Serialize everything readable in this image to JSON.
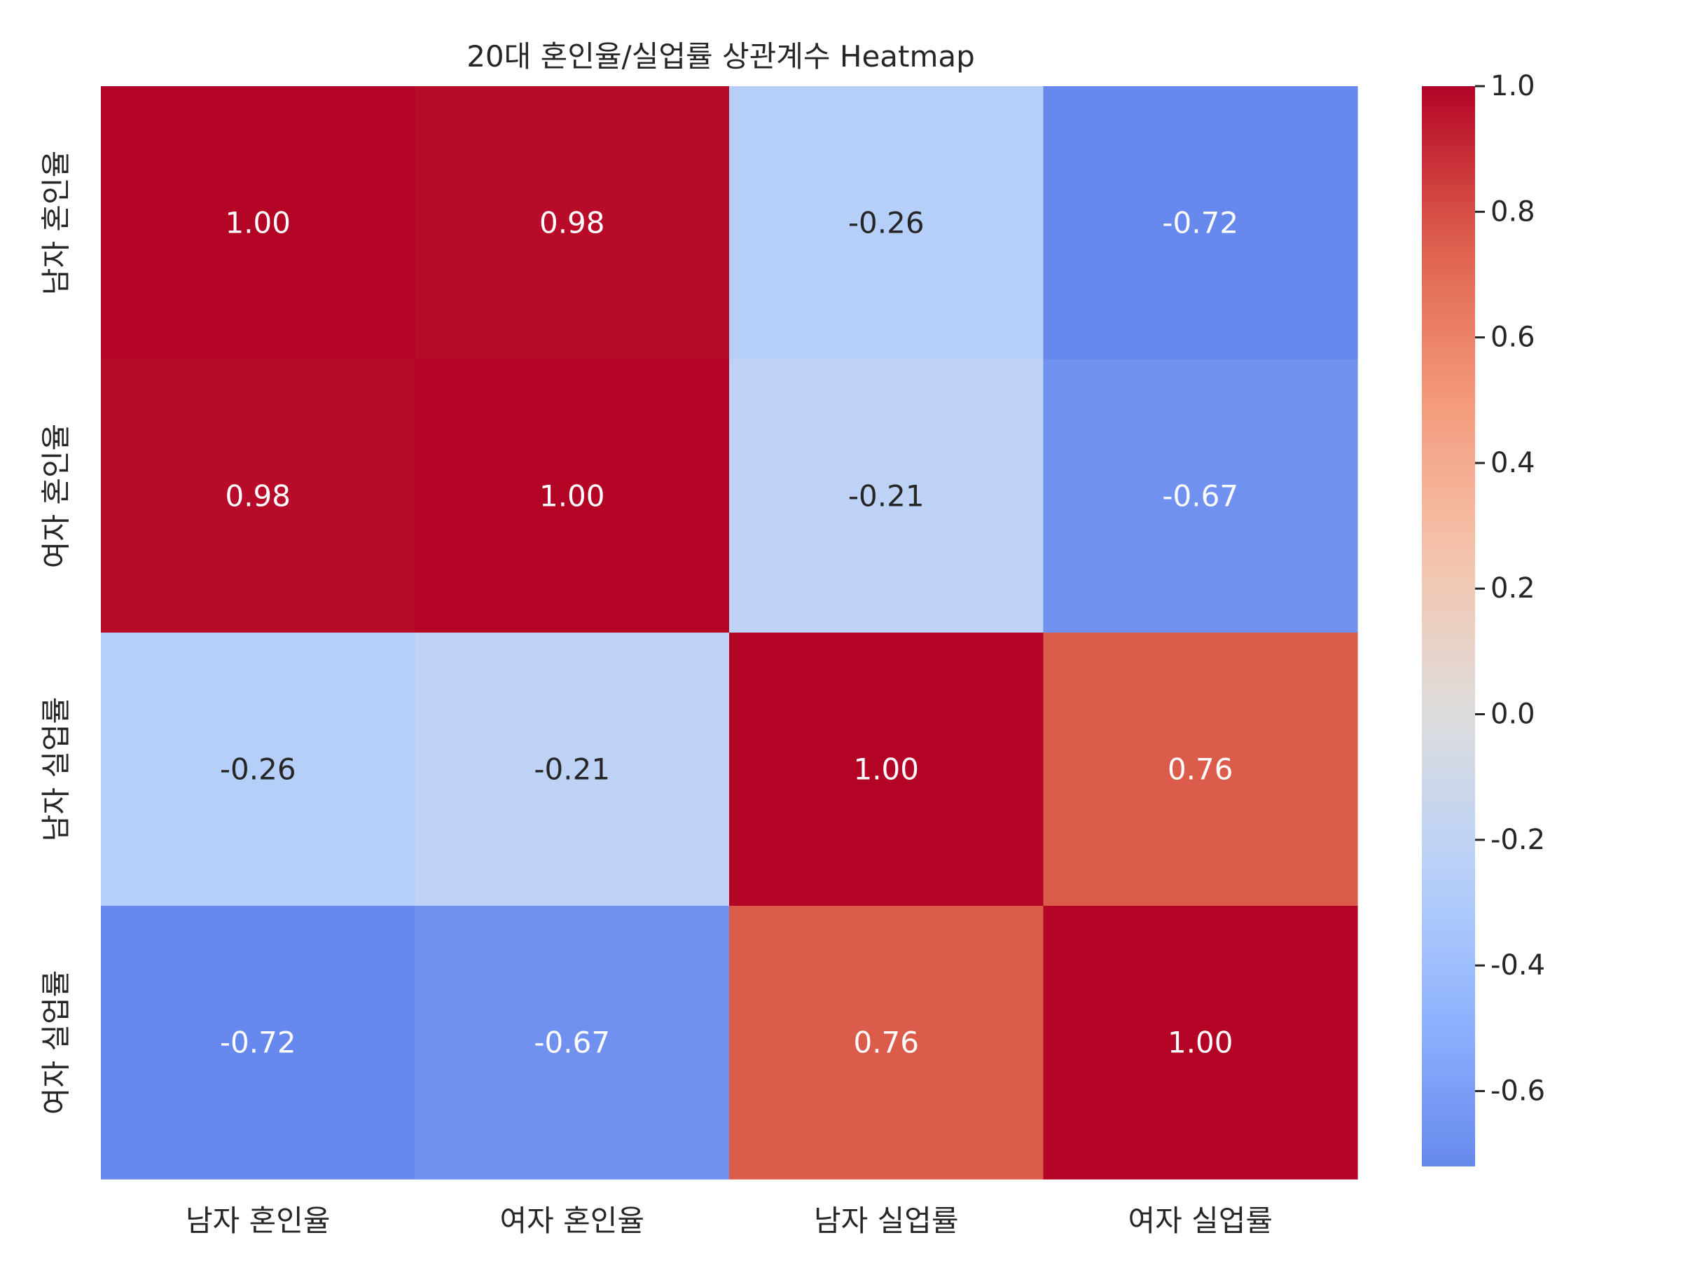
{
  "chart_data": {
    "type": "heatmap",
    "title": "20대 혼인율/실업률 상관계수 Heatmap",
    "xlabel": "",
    "ylabel": "",
    "x_categories": [
      "남자 혼인율",
      "여자 혼인율",
      "남자 실업률",
      "여자 실업률"
    ],
    "y_categories": [
      "남자 혼인율",
      "여자 혼인율",
      "남자 실업률",
      "여자 실업률"
    ],
    "values": [
      [
        1.0,
        0.98,
        -0.26,
        -0.72
      ],
      [
        0.98,
        1.0,
        -0.21,
        -0.67
      ],
      [
        -0.26,
        -0.21,
        1.0,
        0.76
      ],
      [
        -0.72,
        -0.67,
        0.76,
        1.0
      ]
    ],
    "cell_labels": [
      [
        "1.00",
        "0.98",
        "-0.26",
        "-0.72"
      ],
      [
        "0.98",
        "1.00",
        "-0.21",
        "-0.67"
      ],
      [
        "-0.26",
        "-0.21",
        "1.00",
        "0.76"
      ],
      [
        "-0.72",
        "-0.67",
        "0.76",
        "1.00"
      ]
    ],
    "colormap": "coolwarm",
    "colorbar": {
      "range": [
        -0.72,
        1.0
      ],
      "ticks": [
        -0.6,
        -0.4,
        -0.2,
        0.0,
        0.2,
        0.4,
        0.6,
        0.8,
        1.0
      ],
      "tick_labels": [
        "-0.6",
        "-0.4",
        "-0.2",
        "0.0",
        "0.2",
        "0.4",
        "0.6",
        "0.8",
        "1.0"
      ],
      "position": "right"
    },
    "grid": false,
    "annotated": true
  }
}
